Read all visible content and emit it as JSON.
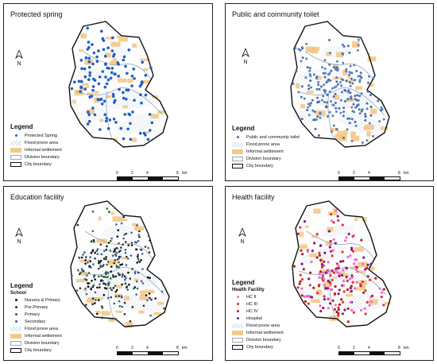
{
  "colors": {
    "spring": "#1f5fc4",
    "toilet": "#4a6fb0",
    "informal": "#f3c98a",
    "flood": "#c9d8ea",
    "division": "#9ab",
    "hc2": "#f06ad8",
    "hc3": "#e8352e",
    "hc4": "#b4231c",
    "hospital": "#7b1d8e"
  },
  "north_label": "N",
  "scale": {
    "ticks": [
      "0",
      "2",
      "4",
      "8"
    ],
    "unit": "km"
  },
  "panels": [
    {
      "title": "Protected spring",
      "legend_title": "Legend",
      "items": [
        "Protected Spring",
        "Flood prone area",
        "Informal settlement",
        "Division boundary",
        "City boundary"
      ]
    },
    {
      "title": "Public and community toilet",
      "legend_title": "Legend",
      "items": [
        "Public and community toilet",
        "Flood prone area",
        "Informal settlement",
        "Division boundary",
        "City boundary"
      ]
    },
    {
      "title": "Education facility",
      "legend_title": "Legend",
      "subtitle": "School",
      "items": [
        "Nursery & Primary",
        "Pre-Primary",
        "Primary",
        "Secondary",
        "Flood prone area",
        "Informal settlement",
        "Division boundary",
        "City boundary"
      ]
    },
    {
      "title": "Health facility",
      "legend_title": "Legend",
      "subtitle": "Health Facility",
      "items": [
        "HC II",
        "HC III",
        "HC IV",
        "Hospital",
        "Flood prone area",
        "Informal settlement",
        "Division boundary",
        "City boundary"
      ]
    }
  ]
}
